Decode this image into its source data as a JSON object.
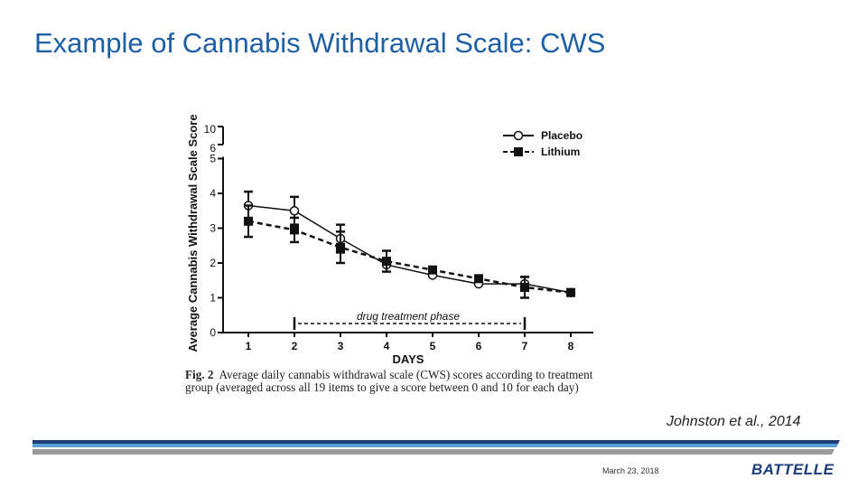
{
  "slide": {
    "title": "Example of Cannabis Withdrawal Scale: CWS",
    "citation": "Johnston et al., 2014",
    "date": "March 23, 2018",
    "logo_text": "BATTELLE"
  },
  "caption": {
    "label": "Fig. 2",
    "text": "Average daily cannabis withdrawal scale (CWS) scores according to treatment group (averaged across all 19 items to give a score between 0 and 10 for each day)"
  },
  "annotation": "drug treatment phase",
  "colors": {
    "title": "#1f5fa6",
    "footer_dark": "#1a3d7c",
    "footer_light": "#5a9fd8",
    "footer_gray": "#9a9a9a"
  },
  "chart_data": {
    "type": "line",
    "xlabel": "DAYS",
    "ylabel": "Average Cannabis Withdrawal Scale Score",
    "x": [
      1,
      2,
      3,
      4,
      5,
      6,
      7,
      8
    ],
    "x_tick_labels": [
      "1",
      "2",
      "3",
      "4",
      "5",
      "6",
      "7",
      "8"
    ],
    "y_tick_labels": [
      "0",
      "1",
      "2",
      "3",
      "4",
      "5",
      "6",
      "10"
    ],
    "y_axis_break": "between 5 and 10",
    "ylim": [
      0,
      10
    ],
    "legend_position": "top-right",
    "series": [
      {
        "name": "Placebo",
        "marker": "open-circle",
        "line": "solid",
        "values": [
          3.65,
          3.5,
          2.7,
          1.95,
          1.65,
          1.4,
          1.4,
          1.15
        ],
        "err": [
          0.4,
          0.4,
          0.4,
          0,
          0,
          0,
          0.2,
          0
        ]
      },
      {
        "name": "Lithium",
        "marker": "filled-square",
        "line": "dashed",
        "values": [
          3.2,
          2.95,
          2.45,
          2.05,
          1.8,
          1.55,
          1.3,
          1.15
        ],
        "err": [
          0.45,
          0.35,
          0.45,
          0.3,
          0,
          0,
          0.3,
          0
        ]
      }
    ],
    "treatment_phase": {
      "start_day": 2,
      "end_day": 7
    }
  }
}
